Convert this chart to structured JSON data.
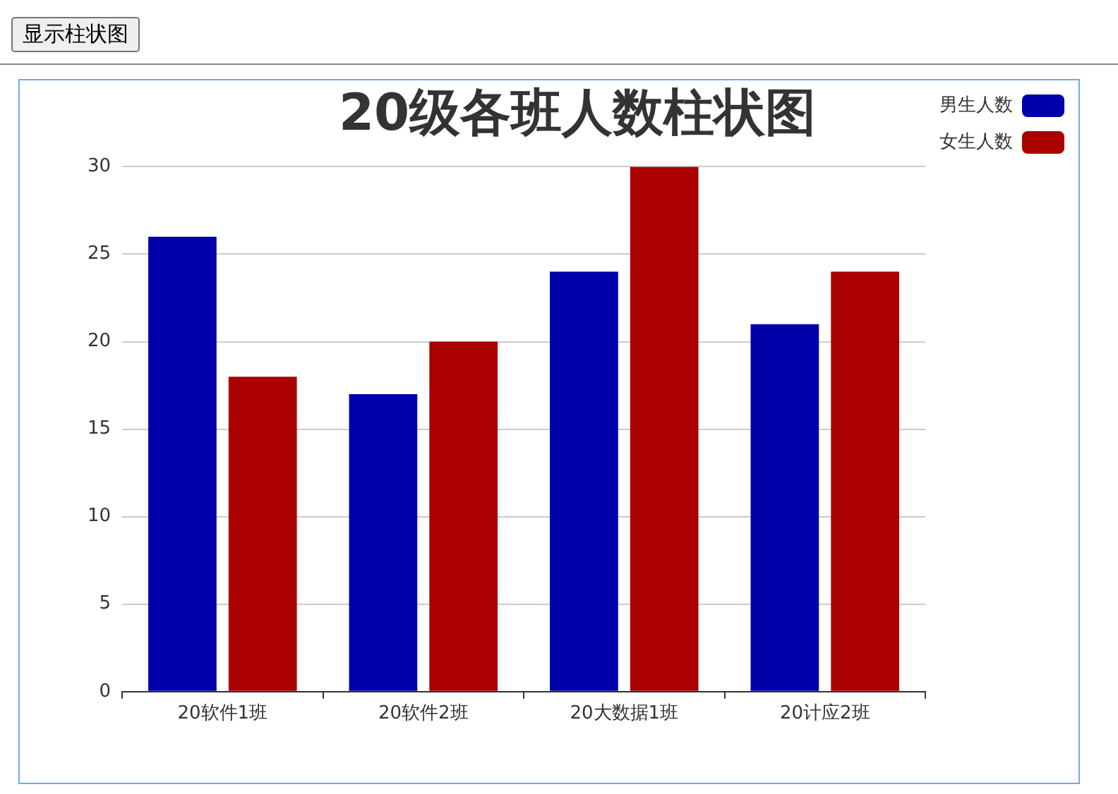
{
  "chart_data": {
    "type": "bar",
    "title": "20级各班人数柱状图",
    "annotations": [
      "显示柱状图"
    ],
    "categories": [
      "20软件1班",
      "20软件2班",
      "20大数据1班",
      "20计应2班"
    ],
    "series": [
      {
        "name": "男生人数",
        "color": "#0000aa",
        "values": [
          26,
          17,
          24,
          21
        ]
      },
      {
        "name": "女生人数",
        "color": "#aa0000",
        "values": [
          18,
          20,
          30,
          24
        ]
      }
    ],
    "ylim": [
      0,
      30
    ],
    "yticks": [
      0,
      5,
      10,
      15,
      20,
      25,
      30
    ],
    "grid": "y",
    "legend": "top right"
  }
}
